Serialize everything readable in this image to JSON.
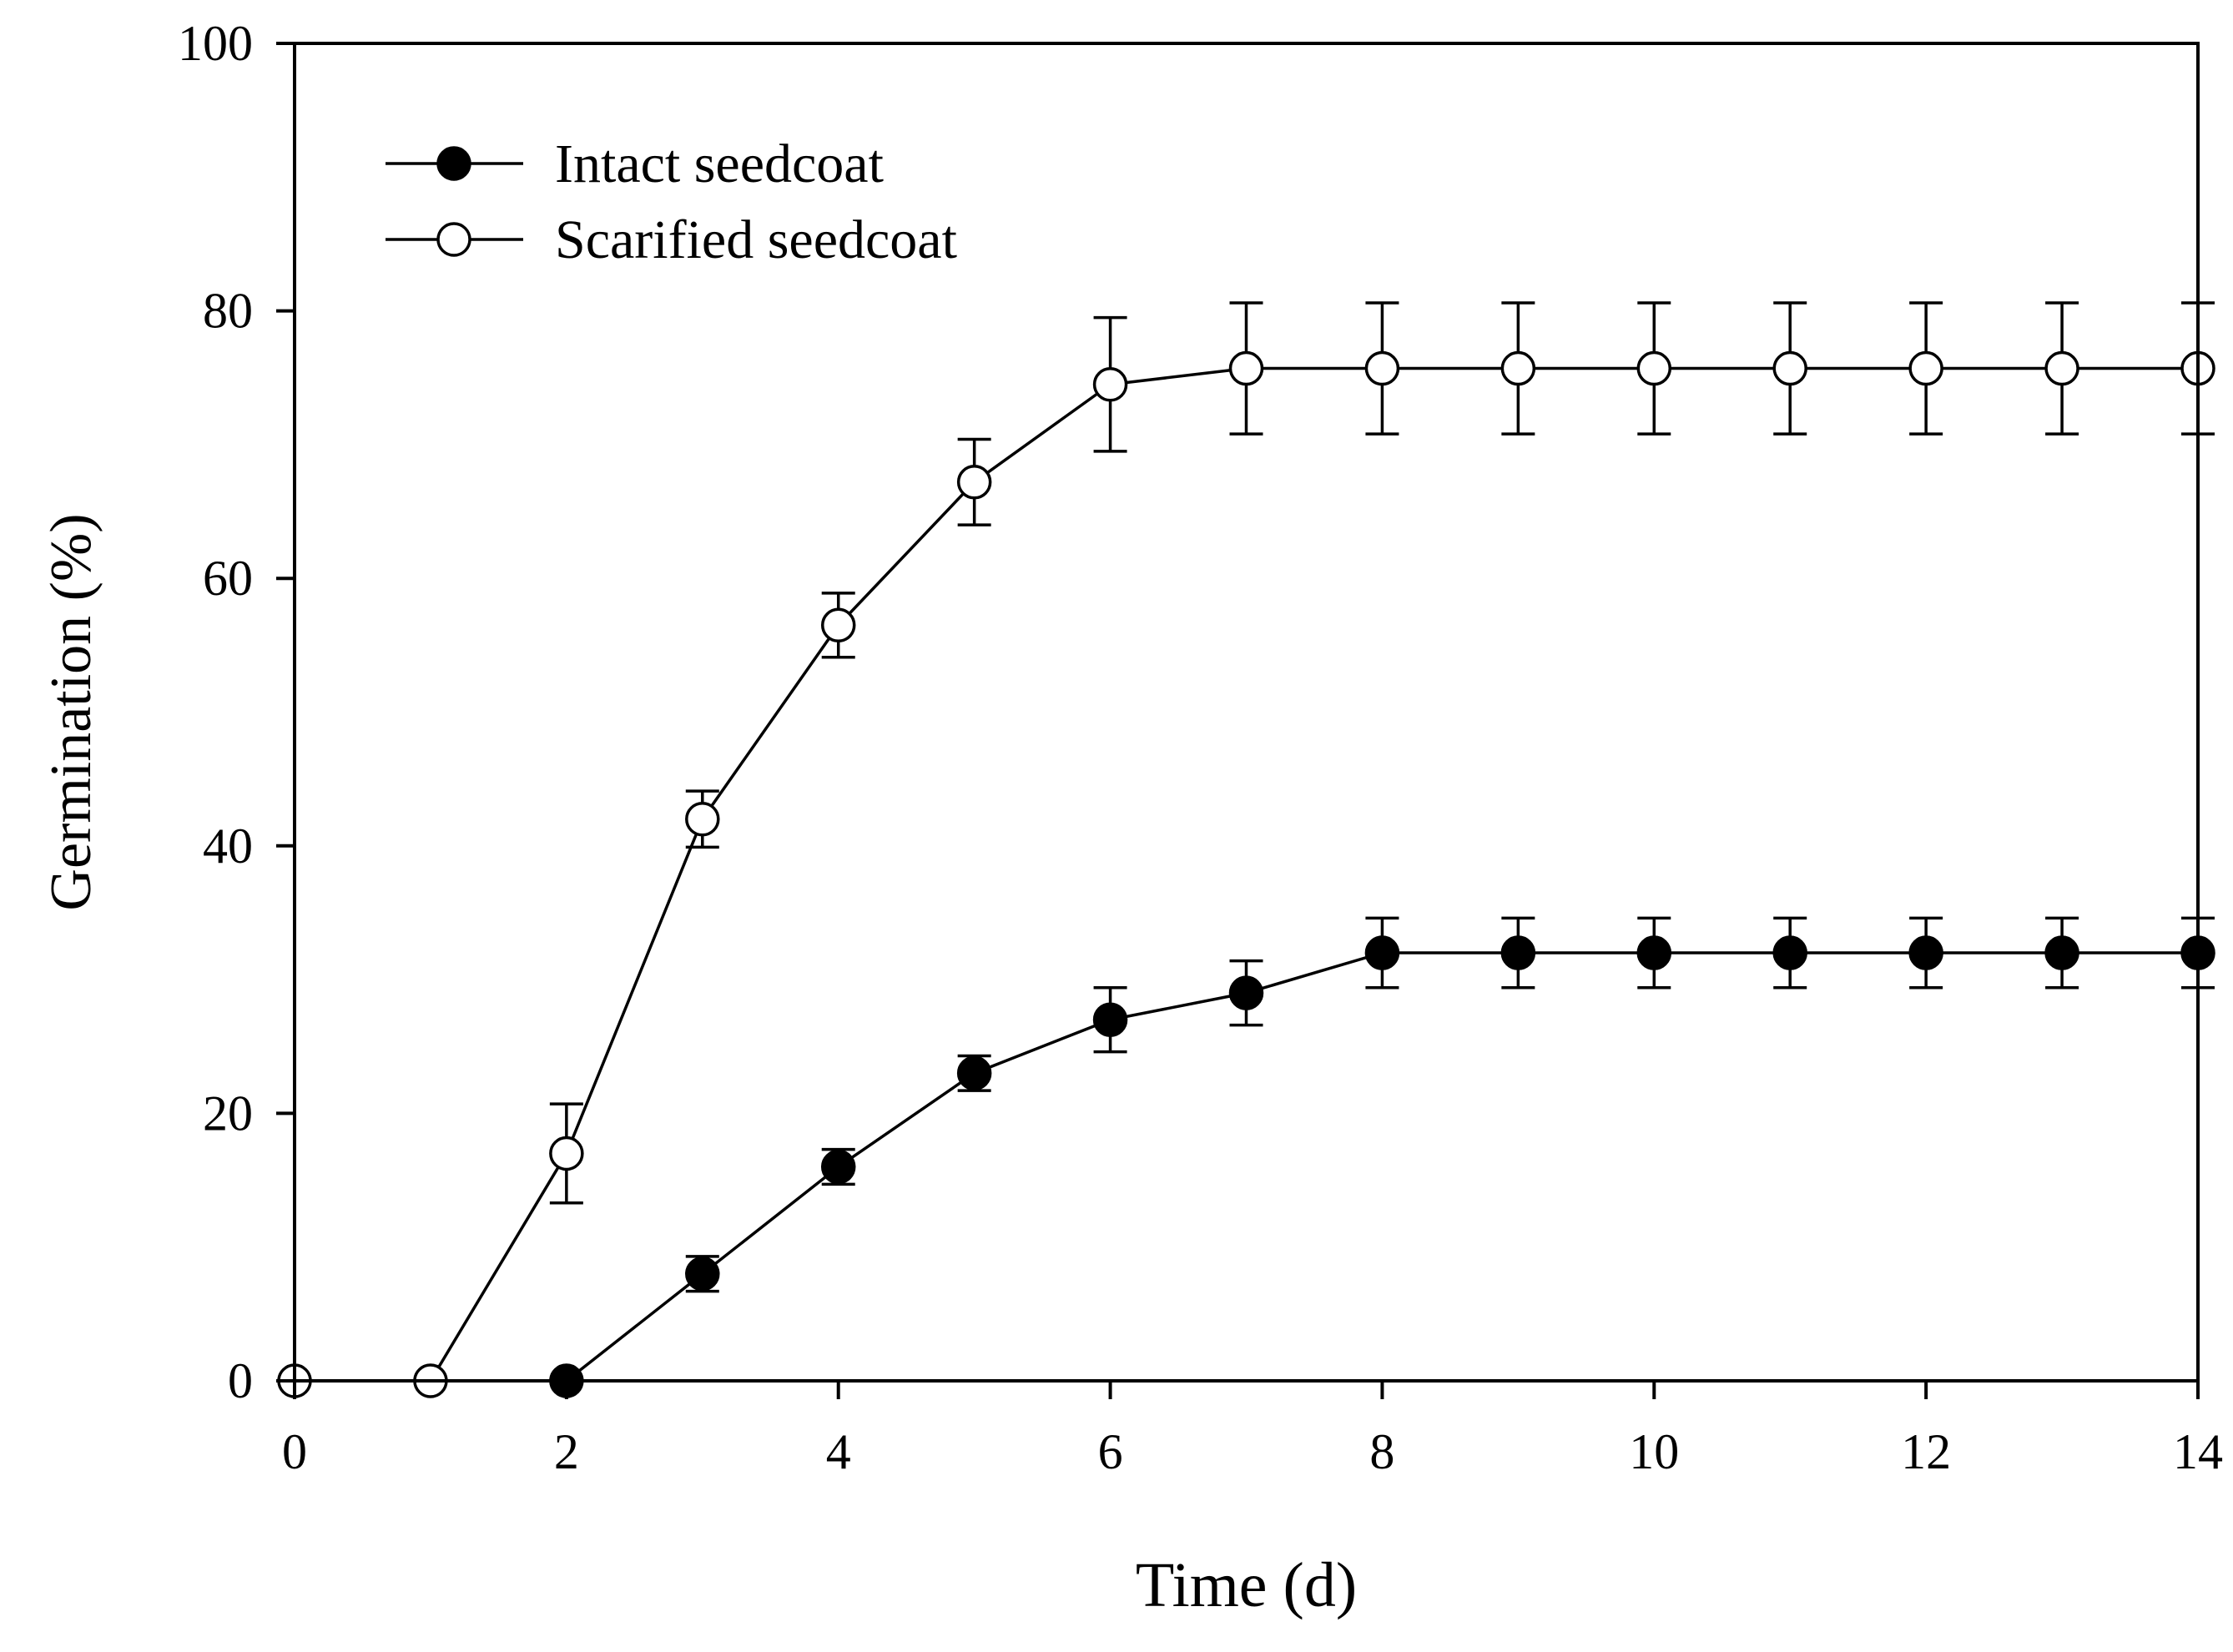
{
  "chart_data": {
    "type": "line",
    "title": "",
    "xlabel": "Time (d)",
    "ylabel": "Germination (%)",
    "xlim": [
      0,
      14
    ],
    "ylim": [
      0,
      100
    ],
    "xticks": [
      0,
      2,
      4,
      6,
      8,
      10,
      12,
      14
    ],
    "yticks": [
      0,
      20,
      40,
      60,
      80,
      100
    ],
    "grid": false,
    "legend_position": "top-left",
    "series": [
      {
        "name": "Intact seedcoat",
        "marker": "filled-circle",
        "x": [
          2,
          3,
          4,
          5,
          6,
          7,
          8,
          9,
          10,
          11,
          12,
          13,
          14
        ],
        "y": [
          0,
          8,
          16,
          23,
          27,
          29,
          32,
          32,
          32,
          32,
          32,
          32,
          32
        ],
        "error": [
          0,
          1.3,
          1.3,
          1.3,
          2.4,
          2.4,
          2.6,
          2.6,
          2.6,
          2.6,
          2.6,
          2.6,
          2.6
        ]
      },
      {
        "name": "Scarified seedcoat",
        "marker": "open-circle",
        "x": [
          0,
          1,
          2,
          3,
          4,
          5,
          6,
          7,
          8,
          9,
          10,
          11,
          12,
          13,
          14
        ],
        "y": [
          0,
          0,
          17,
          42,
          56.5,
          67.2,
          74.5,
          75.7,
          75.7,
          75.7,
          75.7,
          75.7,
          75.7,
          75.7,
          75.7
        ],
        "error": [
          0,
          0,
          3.7,
          2.1,
          2.4,
          3.2,
          5,
          4.9,
          4.9,
          4.9,
          4.9,
          4.9,
          4.9,
          4.9,
          4.9
        ]
      }
    ]
  }
}
